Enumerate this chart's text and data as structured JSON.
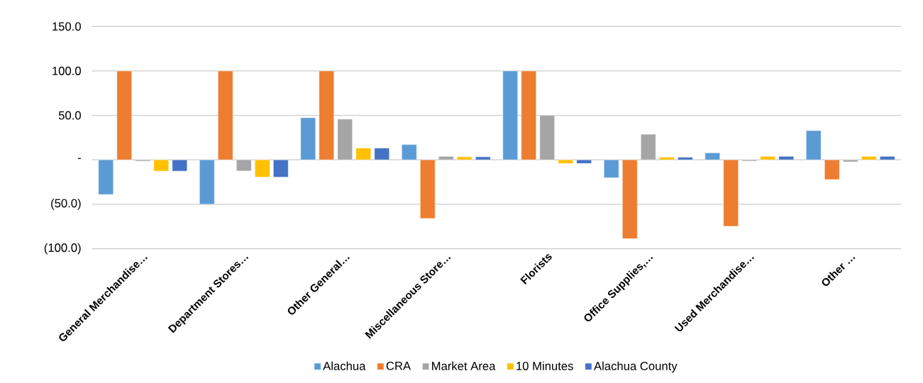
{
  "chart_data": {
    "type": "bar",
    "categories": [
      "General Merchandise…",
      "Department Stores…",
      "Other General…",
      "Miscellaneous Store…",
      "Florists",
      "Office Supplies,…",
      "Used Merchandise…",
      "Other …"
    ],
    "series": [
      {
        "name": "Alachua",
        "color": "#5b9bd5",
        "values": [
          -39,
          -50,
          47.4,
          17.2,
          100,
          -20.2,
          7.9,
          32.9
        ]
      },
      {
        "name": "CRA",
        "color": "#ed7d31",
        "values": [
          100,
          100,
          100,
          -66,
          100,
          -88.7,
          -74.8,
          -22.2
        ]
      },
      {
        "name": "Market Area",
        "color": "#a5a5a5",
        "values": [
          -1.5,
          -12.5,
          45.8,
          3.9,
          50,
          28.8,
          -1.4,
          -2.3
        ]
      },
      {
        "name": "10 Minutes",
        "color": "#ffc000",
        "values": [
          -12.7,
          -19.5,
          13.2,
          3.4,
          -4.1,
          2.9,
          3.9,
          3.9
        ]
      },
      {
        "name": "Alachua County",
        "color": "#4472c4",
        "values": [
          -12.7,
          -19.5,
          13.2,
          3.4,
          -4.1,
          2.9,
          3.9,
          3.9
        ]
      }
    ],
    "ylim": [
      -100,
      150
    ],
    "yticks": [
      {
        "value": -100,
        "label": "(100.0)"
      },
      {
        "value": -50,
        "label": "(50.0)"
      },
      {
        "value": 0,
        "label": "-"
      },
      {
        "value": 50,
        "label": "50.0"
      },
      {
        "value": 100,
        "label": "100.0"
      },
      {
        "value": 150,
        "label": "150.0"
      }
    ],
    "grid": "y",
    "legend": "bottom"
  }
}
